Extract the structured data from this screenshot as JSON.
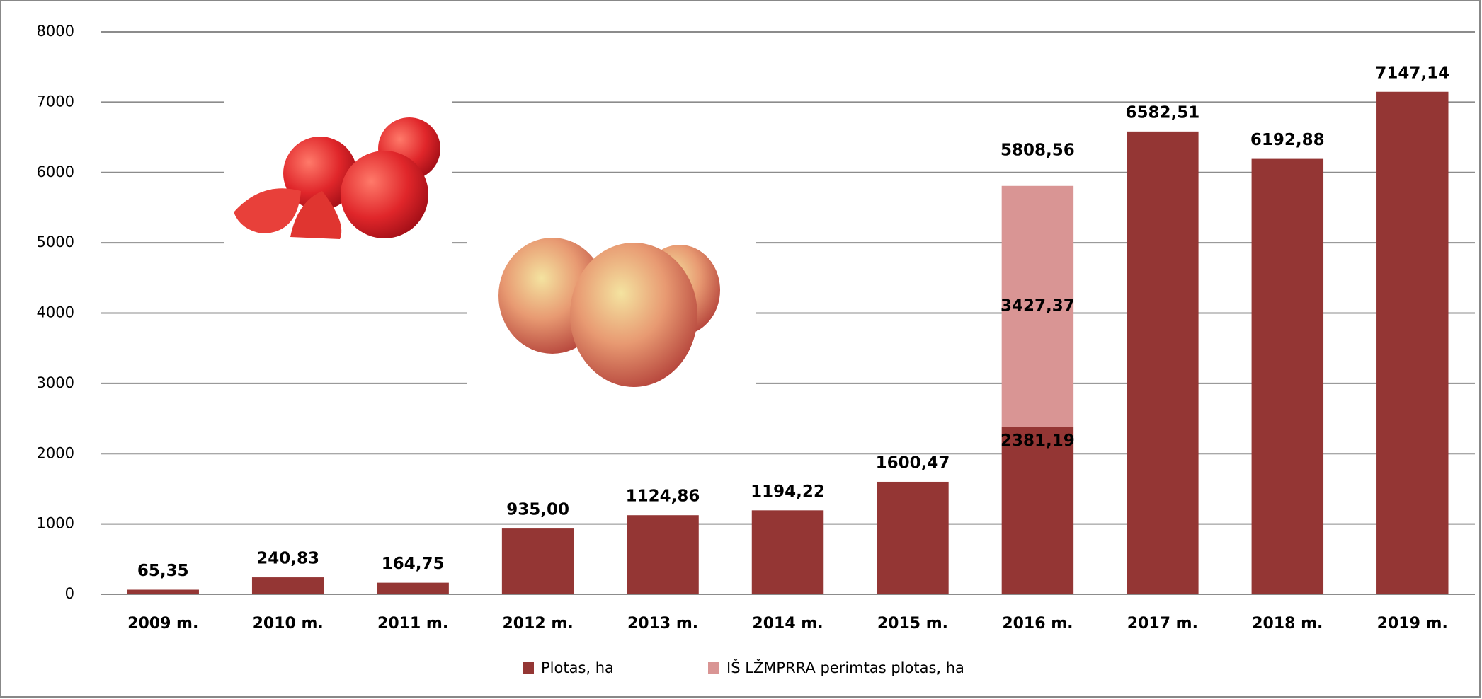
{
  "chart_data": {
    "type": "stacked_bar",
    "categories": [
      "2009 m.",
      "2010 m.",
      "2011 m.",
      "2012 m.",
      "2013 m.",
      "2014 m.",
      "2015 m.",
      "2016 m.",
      "2017 m.",
      "2018 m.",
      "2019 m."
    ],
    "series": [
      {
        "name": "Plotas, ha",
        "color": "#943634",
        "values": [
          65.35,
          240.83,
          164.75,
          935.0,
          1124.86,
          1194.22,
          1600.47,
          2381.19,
          6582.51,
          6192.88,
          7147.14
        ],
        "value_labels": [
          "65,35",
          "240,83",
          "164,75",
          "935,00",
          "1124,86",
          "1194,22",
          "1600,47",
          "2381,19",
          "6582,51",
          "6192,88",
          "7147,14"
        ]
      },
      {
        "name": "IŠ LŽMPRRA perimtas plotas, ha",
        "color": "#d99594",
        "values": [
          null,
          null,
          null,
          null,
          null,
          null,
          null,
          3427.37,
          null,
          null,
          null
        ],
        "value_labels": [
          null,
          null,
          null,
          null,
          null,
          null,
          null,
          "3427,37",
          null,
          null,
          null
        ]
      }
    ],
    "totals": [
      null,
      null,
      null,
      null,
      null,
      null,
      null,
      5808.56,
      null,
      null,
      null
    ],
    "total_labels": [
      null,
      null,
      null,
      null,
      null,
      null,
      null,
      "5808,56",
      null,
      null,
      null
    ],
    "ylim": [
      0,
      8000
    ],
    "yticks": [
      0,
      1000,
      2000,
      3000,
      4000,
      5000,
      6000,
      7000,
      8000
    ],
    "grid": true,
    "legend": "bottom"
  }
}
